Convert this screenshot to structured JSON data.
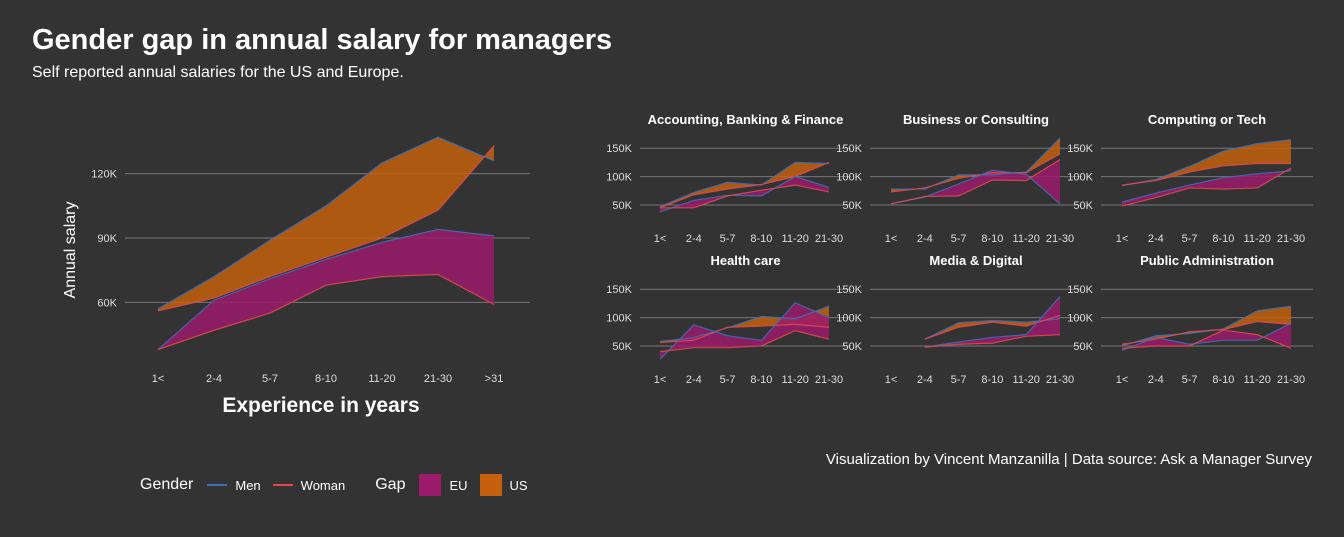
{
  "title": "Gender gap in annual salary for managers",
  "subtitle": "Self reported annual salaries for the US and Europe.",
  "caption": "Visualization by Vincent Manzanilla  |  Data source: Ask a Manager Survey",
  "legend": {
    "gender_title": "Gender",
    "gap_title": "Gap",
    "men": "Men",
    "woman": "Woman",
    "eu": "EU",
    "us": "US"
  },
  "colors": {
    "men": "#3b6fb6",
    "woman": "#e0484c",
    "eu": "#9b1a6b",
    "us": "#c4600d",
    "grid": "#777777",
    "text": "#ffffff",
    "tick": "#dddddd"
  },
  "chart_data": [
    {
      "type": "area",
      "title": "",
      "xlabel": "Experience in years",
      "ylabel": "Annual salary",
      "categories": [
        "1<",
        "2-4",
        "5-7",
        "8-10",
        "11-20",
        "21-30",
        ">31"
      ],
      "ylim": [
        35000,
        145000
      ],
      "yticks": [
        60000,
        90000,
        120000
      ],
      "ytick_labels": [
        "60K",
        "90K",
        "120K"
      ],
      "series": [
        {
          "name": "US Men",
          "gender": "Men",
          "region": "US",
          "values": [
            57000,
            72000,
            89000,
            105000,
            125000,
            137000,
            126000
          ]
        },
        {
          "name": "US Woman",
          "gender": "Woman",
          "region": "US",
          "values": [
            56000,
            62000,
            72000,
            81000,
            90000,
            103000,
            133000
          ]
        },
        {
          "name": "EU Men",
          "gender": "Men",
          "region": "EU",
          "values": [
            38000,
            61000,
            71000,
            80000,
            88000,
            94000,
            91000
          ]
        },
        {
          "name": "EU Woman",
          "gender": "Woman",
          "region": "EU",
          "values": [
            38000,
            47000,
            55000,
            68000,
            72000,
            73000,
            59000
          ]
        }
      ]
    },
    {
      "type": "area",
      "title": "Accounting, Banking & Finance",
      "categories": [
        "1<",
        "2-4",
        "5-7",
        "8-10",
        "11-20",
        "21-30"
      ],
      "ylim": [
        20000,
        175000
      ],
      "yticks": [
        50000,
        100000,
        150000
      ],
      "ytick_labels": [
        "50K",
        "100K",
        "150K"
      ],
      "series": [
        {
          "name": "US Men",
          "values": [
            47000,
            72000,
            90000,
            85000,
            125000,
            123000
          ]
        },
        {
          "name": "US Woman",
          "values": [
            45000,
            68000,
            78000,
            86000,
            100000,
            125000
          ]
        },
        {
          "name": "EU Men",
          "values": [
            38000,
            58000,
            67000,
            66000,
            100000,
            81000
          ]
        },
        {
          "name": "EU Woman",
          "values": [
            45000,
            45000,
            66000,
            76000,
            85000,
            73000
          ]
        }
      ]
    },
    {
      "type": "area",
      "title": "Business or Consulting",
      "categories": [
        "1<",
        "2-4",
        "5-7",
        "8-10",
        "11-20",
        "21-30"
      ],
      "ylim": [
        20000,
        175000
      ],
      "yticks": [
        50000,
        100000,
        150000
      ],
      "ytick_labels": [
        "50K",
        "100K",
        "150K"
      ],
      "series": [
        {
          "name": "US Men",
          "values": [
            78000,
            78000,
            103000,
            103000,
            108000,
            168000
          ]
        },
        {
          "name": "US Woman",
          "values": [
            73000,
            80000,
            97000,
            107000,
            107000,
            140000
          ]
        },
        {
          "name": "EU Men",
          "values": [
            52000,
            64000,
            87000,
            111000,
            104000,
            52000
          ]
        },
        {
          "name": "EU Woman",
          "values": [
            52000,
            65000,
            66000,
            94000,
            93000,
            130000
          ]
        }
      ]
    },
    {
      "type": "area",
      "title": "Computing or Tech",
      "categories": [
        "1<",
        "2-4",
        "5-7",
        "8-10",
        "11-20",
        "21-30"
      ],
      "ylim": [
        20000,
        175000
      ],
      "yticks": [
        50000,
        100000,
        150000
      ],
      "ytick_labels": [
        "50K",
        "100K",
        "150K"
      ],
      "series": [
        {
          "name": "US Men",
          "values": [
            84000,
            95000,
            118000,
            145000,
            158000,
            165000
          ]
        },
        {
          "name": "US Woman",
          "values": [
            85000,
            93000,
            108000,
            119000,
            123000,
            123000
          ]
        },
        {
          "name": "EU Men",
          "values": [
            55000,
            71000,
            85000,
            98000,
            105000,
            110000
          ]
        },
        {
          "name": "EU Woman",
          "values": [
            48000,
            63000,
            80000,
            78000,
            80000,
            115000
          ]
        }
      ]
    },
    {
      "type": "area",
      "title": "Health care",
      "categories": [
        "1<",
        "2-4",
        "5-7",
        "8-10",
        "11-20",
        "21-30"
      ],
      "ylim": [
        20000,
        175000
      ],
      "yticks": [
        50000,
        100000,
        150000
      ],
      "ytick_labels": [
        "50K",
        "100K",
        "150K"
      ],
      "series": [
        {
          "name": "US Men",
          "values": [
            58000,
            65000,
            82000,
            102000,
            98000,
            120000
          ]
        },
        {
          "name": "US Woman",
          "values": [
            56000,
            60000,
            83000,
            85000,
            88000,
            83000
          ]
        },
        {
          "name": "EU Men",
          "values": [
            27000,
            87000,
            68000,
            60000,
            126000,
            100000
          ]
        },
        {
          "name": "EU Woman",
          "values": [
            40000,
            47000,
            47000,
            50000,
            77000,
            62000
          ]
        }
      ]
    },
    {
      "type": "area",
      "title": "Media & Digital",
      "categories": [
        "1<",
        "2-4",
        "5-7",
        "8-10",
        "11-20",
        "21-30"
      ],
      "ylim": [
        20000,
        175000
      ],
      "yticks": [
        50000,
        100000,
        150000
      ],
      "ytick_labels": [
        "50K",
        "100K",
        "150K"
      ],
      "series": [
        {
          "name": "US Men",
          "values": [
            null,
            62000,
            91000,
            95000,
            92000,
            98000
          ]
        },
        {
          "name": "US Woman",
          "values": [
            null,
            62000,
            83000,
            92000,
            85000,
            104000
          ]
        },
        {
          "name": "EU Men",
          "values": [
            null,
            48000,
            57000,
            65000,
            70000,
            137000
          ]
        },
        {
          "name": "EU Woman",
          "values": [
            null,
            48000,
            53000,
            55000,
            67000,
            70000
          ]
        }
      ]
    },
    {
      "type": "area",
      "title": "Public Administration",
      "categories": [
        "1<",
        "2-4",
        "5-7",
        "8-10",
        "11-20",
        "21-30"
      ],
      "ylim": [
        20000,
        175000
      ],
      "yticks": [
        50000,
        100000,
        150000
      ],
      "ytick_labels": [
        "50K",
        "100K",
        "150K"
      ],
      "series": [
        {
          "name": "US Men",
          "values": [
            50000,
            68000,
            72000,
            80000,
            112000,
            120000
          ]
        },
        {
          "name": "US Woman",
          "values": [
            53000,
            62000,
            75000,
            79000,
            93000,
            88000
          ]
        },
        {
          "name": "EU Men",
          "values": [
            42000,
            65000,
            53000,
            60000,
            60000,
            90000
          ]
        },
        {
          "name": "EU Woman",
          "values": [
            46000,
            50000,
            50000,
            78000,
            70000,
            46000
          ]
        }
      ]
    }
  ]
}
